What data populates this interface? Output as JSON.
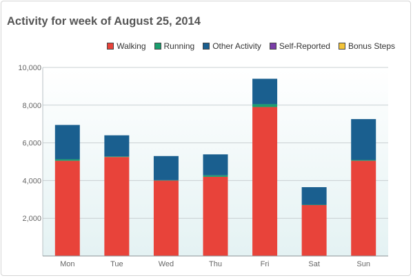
{
  "title": "Activity for week of August 25, 2014",
  "colors": {
    "walking": "#e8433a",
    "running": "#1a9e6e",
    "other_activity": "#1a5f8f",
    "self_reported": "#7a3ea8",
    "bonus_steps": "#f3c43a"
  },
  "chart_data": {
    "type": "bar",
    "stacked": true,
    "title": "Activity for week of August 25, 2014",
    "categories": [
      "Mon",
      "Tue",
      "Wed",
      "Thu",
      "Fri",
      "Sat",
      "Sun"
    ],
    "series": [
      {
        "name": "Walking",
        "color_key": "walking",
        "values": [
          5050,
          5250,
          4000,
          4200,
          7900,
          2700,
          5050
        ]
      },
      {
        "name": "Running",
        "color_key": "running",
        "values": [
          80,
          30,
          20,
          80,
          150,
          20,
          40
        ]
      },
      {
        "name": "Other Activity",
        "color_key": "other_activity",
        "values": [
          1820,
          1120,
          1280,
          1110,
          1350,
          930,
          2170
        ]
      },
      {
        "name": "Self-Reported",
        "color_key": "self_reported",
        "values": [
          0,
          0,
          0,
          0,
          0,
          0,
          0
        ]
      },
      {
        "name": "Bonus Steps",
        "color_key": "bonus_steps",
        "values": [
          0,
          0,
          0,
          0,
          0,
          0,
          0
        ]
      }
    ],
    "ylim": [
      0,
      10000
    ],
    "yticks": [
      2000,
      4000,
      6000,
      8000,
      10000
    ],
    "ytick_labels": [
      "2,000",
      "4,000",
      "6,000",
      "8,000",
      "10,000"
    ],
    "xlabel": "",
    "ylabel": "",
    "grid": true,
    "legend_position": "top-right"
  }
}
